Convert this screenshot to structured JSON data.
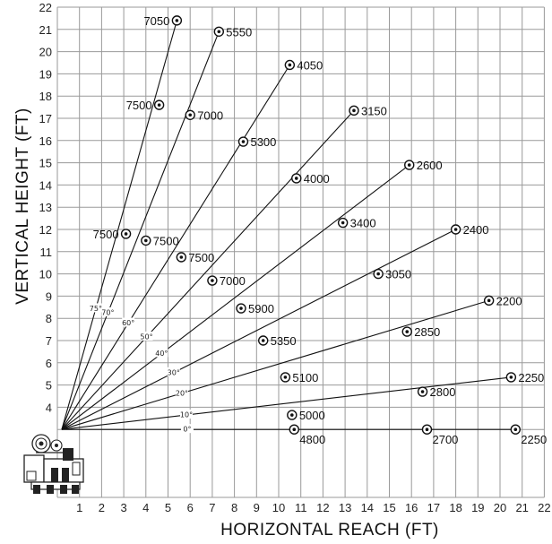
{
  "chart_data": {
    "type": "line",
    "title": "",
    "xlabel": "HORIZONTAL REACH (FT)",
    "ylabel": "VERTICAL HEIGHT (FT)",
    "xlim": [
      0,
      22
    ],
    "ylim": [
      0,
      22
    ],
    "x_ticks": [
      "1",
      "2",
      "3",
      "4",
      "5",
      "6",
      "7",
      "8",
      "9",
      "10",
      "11",
      "12",
      "13",
      "14",
      "15",
      "16",
      "17",
      "18",
      "19",
      "20",
      "21",
      "22"
    ],
    "y_ticks": [
      "4",
      "5",
      "6",
      "7",
      "8",
      "9",
      "10",
      "11",
      "12",
      "13",
      "14",
      "15",
      "16",
      "17",
      "18",
      "19",
      "20",
      "21",
      "22"
    ],
    "y_axis_starts_at": 3,
    "pivot": {
      "x": 0.2,
      "y": 3
    },
    "grid": true,
    "series": [
      {
        "angle": "75°",
        "points": [
          {
            "x": 3.1,
            "y": 11.8,
            "label": "7500",
            "side": "left"
          },
          {
            "x": 4.6,
            "y": 17.6,
            "label": "7500",
            "side": "left"
          },
          {
            "x": 5.4,
            "y": 21.4,
            "label": "7050",
            "side": "left"
          }
        ]
      },
      {
        "angle": "70°",
        "points": [
          {
            "x": 4.0,
            "y": 11.5,
            "label": "7500",
            "side": "right"
          },
          {
            "x": 6.0,
            "y": 17.15,
            "label": "7000",
            "side": "right"
          },
          {
            "x": 7.3,
            "y": 20.9,
            "label": "5550",
            "side": "right"
          }
        ]
      },
      {
        "angle": "60°",
        "points": [
          {
            "x": 5.6,
            "y": 10.75,
            "label": "7500",
            "side": "right"
          },
          {
            "x": 8.4,
            "y": 15.95,
            "label": "5300",
            "side": "right"
          },
          {
            "x": 10.5,
            "y": 19.4,
            "label": "4050",
            "side": "right"
          }
        ]
      },
      {
        "angle": "50°",
        "points": [
          {
            "x": 7.0,
            "y": 9.7,
            "label": "7000",
            "side": "right"
          },
          {
            "x": 10.8,
            "y": 14.3,
            "label": "4000",
            "side": "right"
          },
          {
            "x": 13.4,
            "y": 17.35,
            "label": "3150",
            "side": "right"
          }
        ]
      },
      {
        "angle": "40°",
        "points": [
          {
            "x": 8.3,
            "y": 8.45,
            "label": "5900",
            "side": "right"
          },
          {
            "x": 12.9,
            "y": 12.3,
            "label": "3400",
            "side": "right"
          },
          {
            "x": 15.9,
            "y": 14.9,
            "label": "2600",
            "side": "right"
          }
        ]
      },
      {
        "angle": "30°",
        "points": [
          {
            "x": 9.3,
            "y": 7.0,
            "label": "5350",
            "side": "right"
          },
          {
            "x": 14.5,
            "y": 10.0,
            "label": "3050",
            "side": "right"
          },
          {
            "x": 18.0,
            "y": 12.0,
            "label": "2400",
            "side": "right"
          }
        ]
      },
      {
        "angle": "20°",
        "points": [
          {
            "x": 10.3,
            "y": 5.35,
            "label": "5100",
            "side": "right"
          },
          {
            "x": 15.8,
            "y": 7.4,
            "label": "2850",
            "side": "right"
          },
          {
            "x": 19.5,
            "y": 8.8,
            "label": "2200",
            "side": "right"
          }
        ]
      },
      {
        "angle": "10°",
        "points": [
          {
            "x": 10.6,
            "y": 3.65,
            "label": "5000",
            "side": "right"
          },
          {
            "x": 16.5,
            "y": 4.7,
            "label": "2800",
            "side": "right"
          },
          {
            "x": 20.5,
            "y": 5.35,
            "label": "2250",
            "side": "right"
          }
        ]
      },
      {
        "angle": "0°",
        "points": [
          {
            "x": 10.7,
            "y": 3.0,
            "label": "4800",
            "side": "below"
          },
          {
            "x": 16.7,
            "y": 3.0,
            "label": "2700",
            "side": "below"
          },
          {
            "x": 20.7,
            "y": 3.0,
            "label": "2250",
            "side": "below"
          }
        ]
      }
    ]
  }
}
